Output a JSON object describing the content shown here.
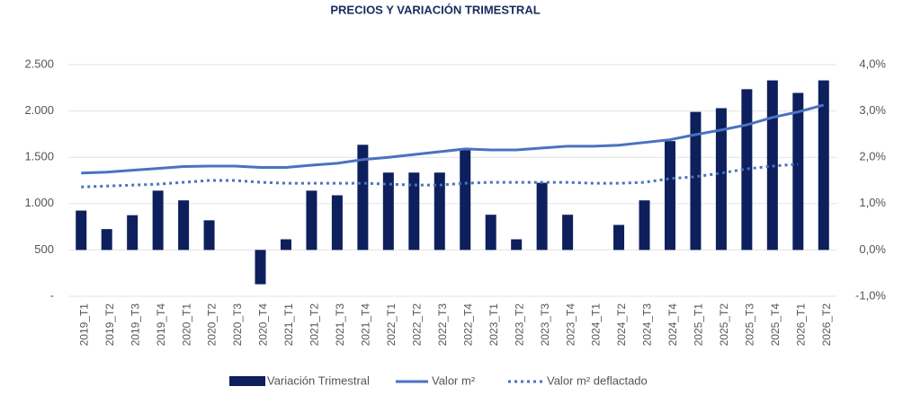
{
  "chart_data": {
    "type": "bar_line",
    "title": "PRECIOS Y VARIACIÓN TRIMESTRAL",
    "categories": [
      "2019_T1",
      "2019_T2",
      "2019_T3",
      "2019_T4",
      "2020_T1",
      "2020_T2",
      "2020_T3",
      "2020_T4",
      "2021_T1",
      "2021_T2",
      "2021_T3",
      "2021_T4",
      "2022_T1",
      "2022_T2",
      "2022_T3",
      "2022_T4",
      "2023_T1",
      "2023_T2",
      "2023_T3",
      "2023_T4",
      "2024_T1",
      "2024_T2",
      "2024_T3",
      "2024_T4",
      "2025_T1",
      "2025_T2",
      "2025_T3",
      "2025_T4",
      "2026_T1",
      "2026_T2"
    ],
    "series": [
      {
        "name": "Variación Trimestral",
        "type": "bar",
        "axis": "y2",
        "color": "#0d1f5c",
        "values": [
          0.85,
          0.45,
          0.75,
          1.28,
          1.07,
          0.64,
          0,
          -0.74,
          0.23,
          1.28,
          1.18,
          2.27,
          1.67,
          1.67,
          1.67,
          2.17,
          0.76,
          0.23,
          1.45,
          0.76,
          0,
          0.54,
          1.07,
          2.35,
          2.98,
          3.06,
          3.47,
          3.66,
          3.39,
          3.66
        ]
      },
      {
        "name": "Valor m²",
        "type": "line",
        "color": "#4a72c0",
        "values": [
          1330,
          1340,
          1360,
          1380,
          1400,
          1405,
          1405,
          1390,
          1390,
          1415,
          1435,
          1475,
          1500,
          1530,
          1560,
          1590,
          1580,
          1580,
          1600,
          1620,
          1620,
          1630,
          1660,
          1690,
          1745,
          1795,
          1850,
          1930,
          1990,
          2065
        ]
      },
      {
        "name": "Valor m² deflactado",
        "type": "dotted",
        "color": "#4a72c0",
        "values": [
          1180,
          1190,
          1200,
          1210,
          1230,
          1250,
          1250,
          1230,
          1220,
          1220,
          1220,
          1220,
          1210,
          1200,
          1200,
          1220,
          1230,
          1230,
          1230,
          1230,
          1220,
          1220,
          1230,
          1270,
          1290,
          1330,
          1375,
          1405,
          1425,
          null
        ]
      }
    ],
    "ylim": [
      0,
      2500
    ],
    "yticks": [
      {
        "value": 0,
        "label": "-"
      },
      500,
      {
        "value": 1000,
        "label": "1.000"
      },
      {
        "value": 1500,
        "label": "1.500"
      },
      {
        "value": 2000,
        "label": "2.000"
      },
      {
        "value": 2500,
        "label": "2.500"
      }
    ],
    "y2lim": [
      -1,
      4
    ],
    "y2ticks": [
      {
        "value": -1,
        "label": "-1,0%"
      },
      {
        "value": 0,
        "label": "0,0%"
      },
      {
        "value": 1,
        "label": "1,0%"
      },
      {
        "value": 2,
        "label": "2,0%"
      },
      {
        "value": 3,
        "label": "3,0%"
      },
      {
        "value": 4,
        "label": "4,0%"
      }
    ],
    "grid": true
  }
}
